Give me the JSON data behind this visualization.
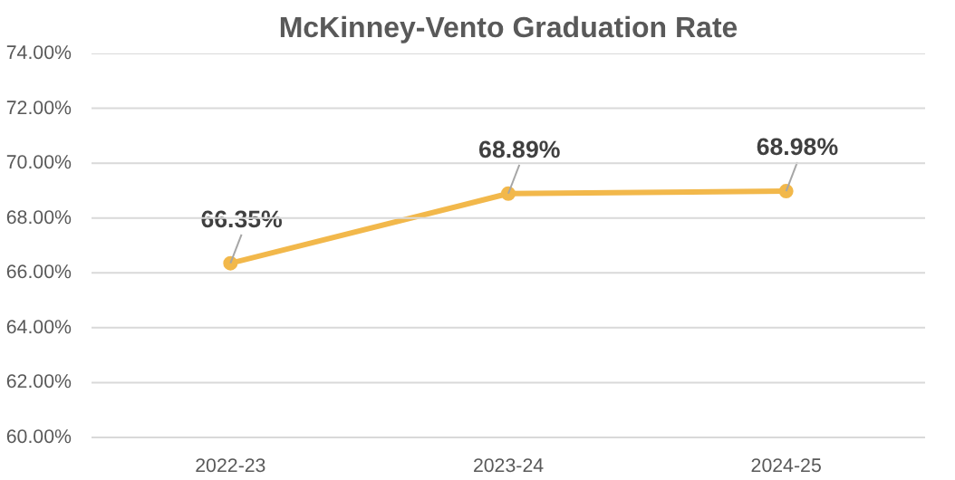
{
  "chart_data": {
    "type": "line",
    "title": "McKinney-Vento Graduation Rate",
    "categories": [
      "2022-23",
      "2023-24",
      "2024-25"
    ],
    "series": [
      {
        "color": "#f2b84b",
        "values": [
          66.35,
          68.89,
          68.98
        ],
        "value_labels": [
          "66.35%",
          "68.89%",
          "68.98%"
        ]
      }
    ],
    "ylim": [
      60,
      74
    ],
    "yticks": [
      {
        "value": 60,
        "label": "60.00%"
      },
      {
        "value": 62,
        "label": "62.00%"
      },
      {
        "value": 64,
        "label": "64.00%"
      },
      {
        "value": 66,
        "label": "66.00%"
      },
      {
        "value": 68,
        "label": "68.00%"
      },
      {
        "value": 70,
        "label": "70.00%"
      },
      {
        "value": 72,
        "label": "72.00%"
      },
      {
        "value": 74,
        "label": "74.00%"
      }
    ],
    "grid": "y",
    "marker": "circle",
    "line_style": "solid"
  }
}
